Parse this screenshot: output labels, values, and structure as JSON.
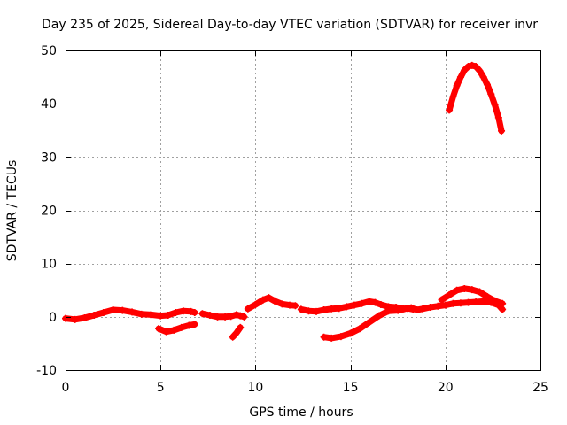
{
  "chart_data": {
    "type": "scatter",
    "title": "Day 235 of 2025, Sidereal Day-to-day VTEC variation (SDTVAR) for receiver invr",
    "xlabel": "GPS time / hours",
    "ylabel": "SDTVAR / TECUs",
    "xlim": [
      0,
      25
    ],
    "ylim": [
      -10,
      50
    ],
    "xticks": [
      0,
      5,
      10,
      15,
      20,
      25
    ],
    "yticks": [
      -10,
      0,
      10,
      20,
      30,
      40,
      50
    ],
    "grid": true,
    "marker": "plus",
    "color": "#ff0000",
    "series": [
      {
        "name": "trace-1",
        "points": [
          [
            0.0,
            -0.3
          ],
          [
            0.5,
            -0.5
          ],
          [
            1.0,
            -0.2
          ],
          [
            1.5,
            0.3
          ],
          [
            2.0,
            0.8
          ],
          [
            2.5,
            1.3
          ],
          [
            3.0,
            1.2
          ],
          [
            3.5,
            0.9
          ],
          [
            4.0,
            0.5
          ],
          [
            4.5,
            0.4
          ],
          [
            5.0,
            0.2
          ],
          [
            5.4,
            0.3
          ],
          [
            5.8,
            0.8
          ],
          [
            6.2,
            1.1
          ],
          [
            6.6,
            1.0
          ],
          [
            6.8,
            0.8
          ]
        ]
      },
      {
        "name": "trace-2",
        "points": [
          [
            4.9,
            -2.2
          ],
          [
            5.3,
            -2.8
          ],
          [
            5.7,
            -2.5
          ],
          [
            6.1,
            -2.0
          ],
          [
            6.5,
            -1.6
          ],
          [
            6.8,
            -1.4
          ]
        ]
      },
      {
        "name": "trace-3",
        "points": [
          [
            7.2,
            0.6
          ],
          [
            7.6,
            0.3
          ],
          [
            8.0,
            0.0
          ],
          [
            8.4,
            0.0
          ],
          [
            8.7,
            0.1
          ],
          [
            9.0,
            0.4
          ],
          [
            9.2,
            0.2
          ],
          [
            9.4,
            0.0
          ]
        ]
      },
      {
        "name": "trace-4",
        "points": [
          [
            8.8,
            -3.8
          ],
          [
            9.0,
            -3.0
          ],
          [
            9.2,
            -2.0
          ]
        ]
      },
      {
        "name": "trace-5",
        "points": [
          [
            9.6,
            1.5
          ],
          [
            10.0,
            2.3
          ],
          [
            10.4,
            3.2
          ],
          [
            10.7,
            3.6
          ],
          [
            11.0,
            3.0
          ],
          [
            11.4,
            2.4
          ],
          [
            11.8,
            2.2
          ],
          [
            12.1,
            2.1
          ]
        ]
      },
      {
        "name": "trace-6",
        "points": [
          [
            12.4,
            1.4
          ],
          [
            12.8,
            1.1
          ],
          [
            13.2,
            1.0
          ],
          [
            13.6,
            1.3
          ],
          [
            14.0,
            1.5
          ],
          [
            14.4,
            1.6
          ],
          [
            14.8,
            1.9
          ],
          [
            15.2,
            2.2
          ],
          [
            15.6,
            2.5
          ],
          [
            16.0,
            2.9
          ],
          [
            16.3,
            2.7
          ],
          [
            16.6,
            2.3
          ],
          [
            17.0,
            1.9
          ],
          [
            17.4,
            1.8
          ],
          [
            17.8,
            1.5
          ],
          [
            18.2,
            1.7
          ],
          [
            18.5,
            1.3
          ],
          [
            18.8,
            1.5
          ],
          [
            19.2,
            1.8
          ],
          [
            19.6,
            2.0
          ],
          [
            20.0,
            2.2
          ],
          [
            20.4,
            2.5
          ],
          [
            20.8,
            2.6
          ],
          [
            21.2,
            2.7
          ],
          [
            21.6,
            2.8
          ],
          [
            22.0,
            2.9
          ],
          [
            22.4,
            2.7
          ],
          [
            22.8,
            2.2
          ],
          [
            23.0,
            1.4
          ]
        ]
      },
      {
        "name": "trace-7",
        "points": [
          [
            13.6,
            -3.8
          ],
          [
            14.0,
            -4.0
          ],
          [
            14.5,
            -3.7
          ],
          [
            15.0,
            -3.1
          ],
          [
            15.5,
            -2.2
          ],
          [
            16.0,
            -1.0
          ],
          [
            16.5,
            0.2
          ],
          [
            17.0,
            1.1
          ],
          [
            17.5,
            1.2
          ],
          [
            18.0,
            1.6
          ],
          [
            18.3,
            1.4
          ]
        ]
      },
      {
        "name": "trace-8",
        "points": [
          [
            19.8,
            3.2
          ],
          [
            20.2,
            4.1
          ],
          [
            20.6,
            5.0
          ],
          [
            21.0,
            5.3
          ],
          [
            21.4,
            5.1
          ],
          [
            21.8,
            4.7
          ],
          [
            22.2,
            3.8
          ],
          [
            22.6,
            3.0
          ],
          [
            23.0,
            2.5
          ]
        ]
      },
      {
        "name": "trace-9",
        "points": [
          [
            20.2,
            38.8
          ],
          [
            20.4,
            41.3
          ],
          [
            20.6,
            43.4
          ],
          [
            20.8,
            45.0
          ],
          [
            21.0,
            46.3
          ],
          [
            21.2,
            47.0
          ],
          [
            21.4,
            47.2
          ],
          [
            21.6,
            47.0
          ],
          [
            21.8,
            46.2
          ],
          [
            22.0,
            45.0
          ],
          [
            22.2,
            43.6
          ],
          [
            22.4,
            41.8
          ],
          [
            22.6,
            39.8
          ],
          [
            22.8,
            37.4
          ],
          [
            22.95,
            34.9
          ]
        ]
      }
    ]
  }
}
